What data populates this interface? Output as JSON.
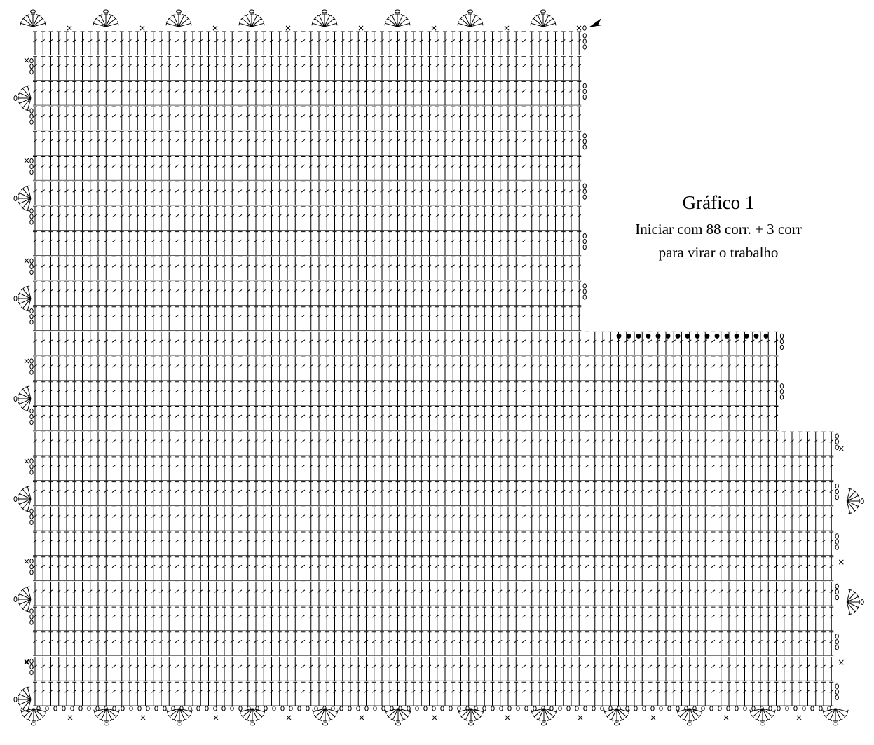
{
  "caption": {
    "title": "Gráfico 1",
    "instruction_line1": "Iniciar com 88 corr. + 3 corr",
    "instruction_line2": "para virar o trabalho"
  },
  "chart_data": {
    "type": "crochet-chart",
    "start_chain": 88,
    "turning_chain": 3,
    "sections": [
      {
        "rows": 12,
        "stitches_per_row": 70
      },
      {
        "rows": 4,
        "stitches_per_row": 95
      },
      {
        "rows": 11,
        "stitches_per_row": 102
      }
    ],
    "slip_stitches_at_step": 16,
    "symbols": {
      "double-crochet": "treble stitch (T)",
      "chain": "0",
      "single-crochet": "×",
      "slip-stitch": "•",
      "shell": "fan of stitches"
    },
    "colors": {
      "ink": "#000000",
      "background": "#ffffff"
    }
  }
}
